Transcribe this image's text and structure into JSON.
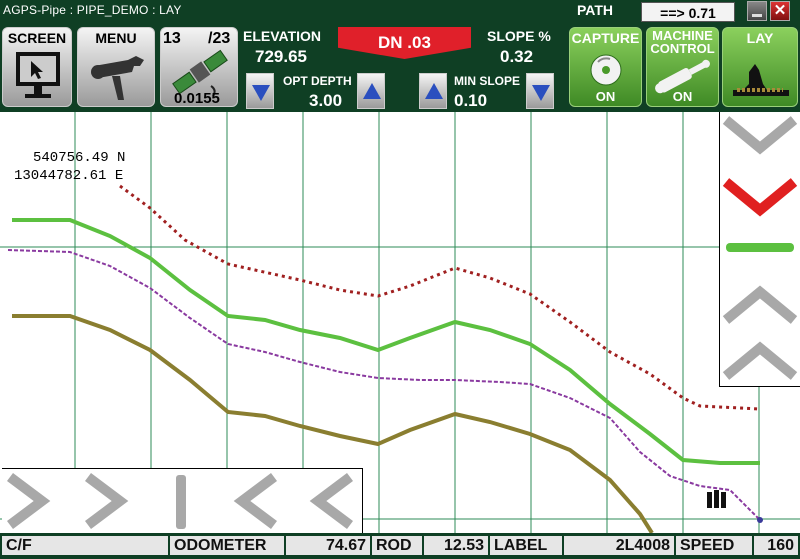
{
  "window": {
    "title": "AGPS-Pipe : PIPE_DEMO : LAY"
  },
  "path": {
    "label": "PATH",
    "value": "==> 0.71"
  },
  "toolbar": {
    "screen_label": "SCREEN",
    "menu_label": "MENU",
    "gps": {
      "satellites": "13",
      "total": "/23",
      "accuracy": "0.0155"
    },
    "elevation_label": "ELEVATION",
    "elevation_value": "729.65",
    "dn_label": "DN .03",
    "slope_label": "SLOPE %",
    "slope_value": "0.32",
    "opt_depth_label": "OPT DEPTH",
    "opt_depth_value": "3.00",
    "min_slope_label": "MIN SLOPE",
    "min_slope_value": "0.10",
    "capture_label": "CAPTURE",
    "capture_state": "ON",
    "machine_control_label_1": "MACHINE",
    "machine_control_label_2": "CONTROL",
    "machine_control_state": "ON",
    "lay_label": "LAY"
  },
  "plot": {
    "northing": "540756.49 N",
    "easting": "13044782.61 E"
  },
  "status": {
    "cf": "C/F",
    "odometer_label": "ODOMETER",
    "odometer_value": "74.67",
    "rod_label": "ROD",
    "rod_value": "12.53",
    "label_label": "LABEL",
    "label_value": "2L4008",
    "speed_label": "SPEED",
    "speed_value": "160"
  },
  "colors": {
    "background": "#0f3f24",
    "surface_line": "#5cc040",
    "pipe_line": "#8a7e30",
    "design_line": "#8a3aa0",
    "top_line": "#a02020",
    "grid": "#2e8b57",
    "active_arrow": "#e02020",
    "on_grade": "#5cc040"
  }
}
